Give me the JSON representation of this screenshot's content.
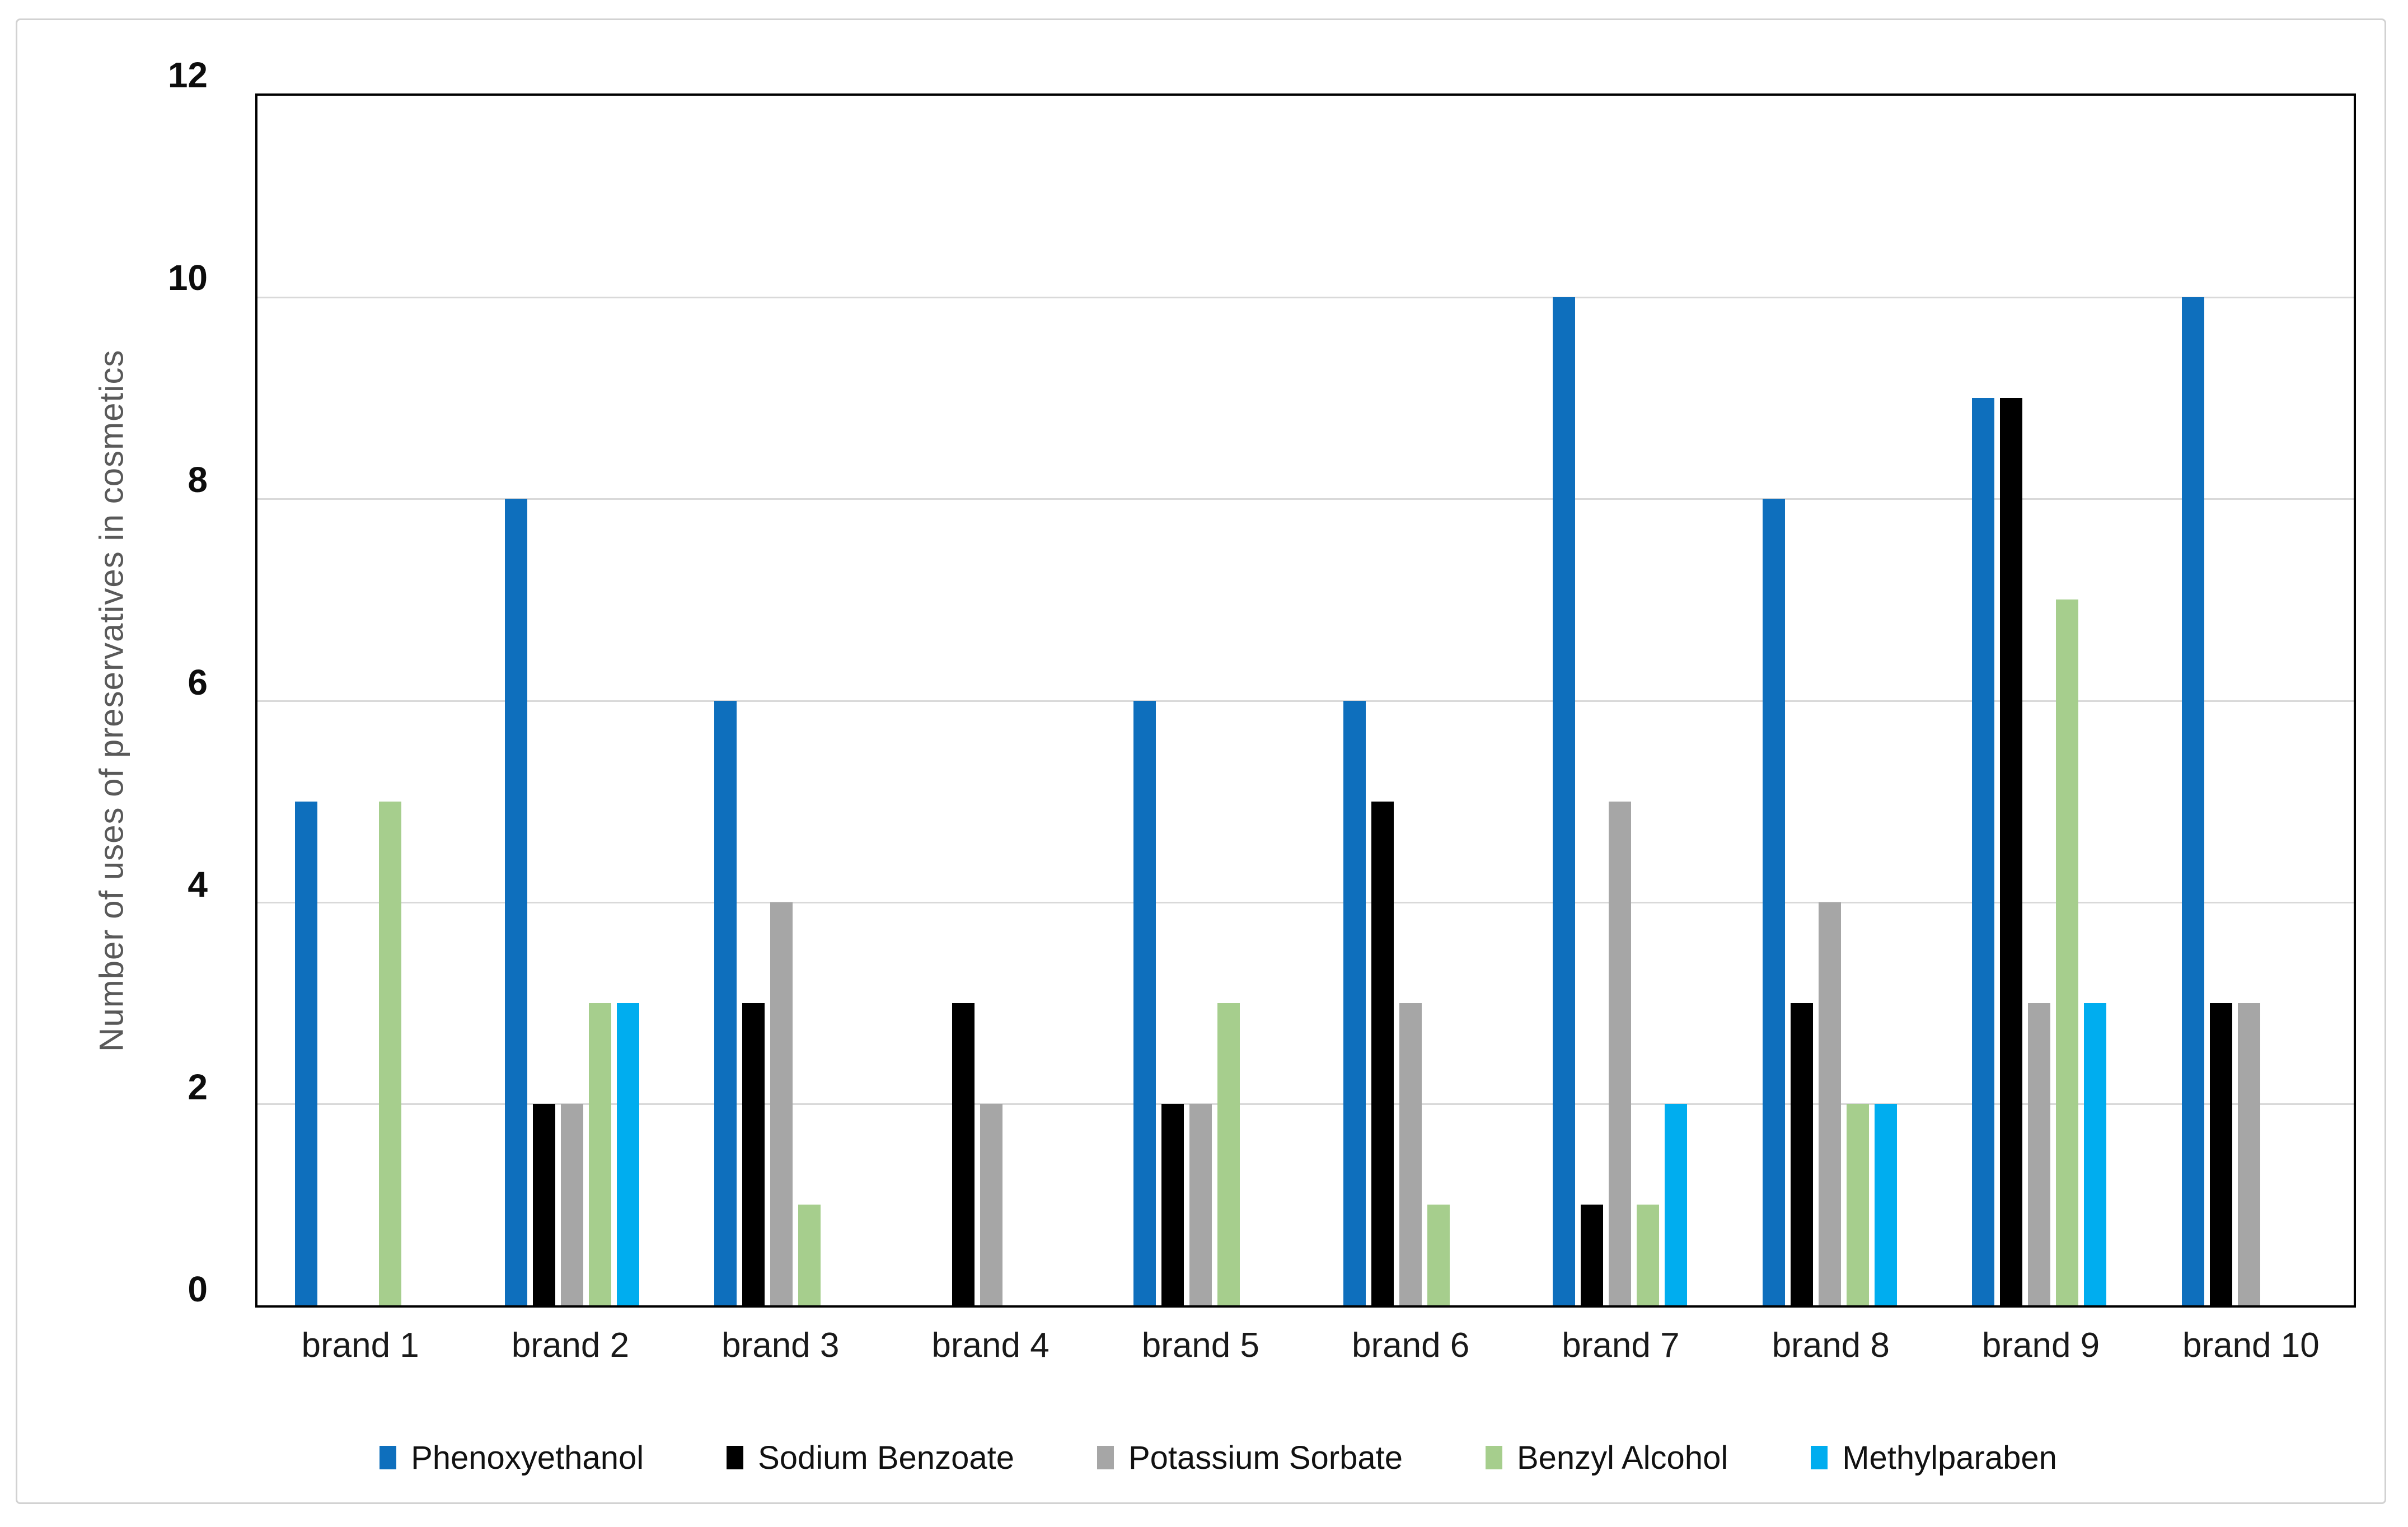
{
  "chart_data": {
    "type": "bar",
    "title": "",
    "categories": [
      "brand 1",
      "brand 2",
      "brand 3",
      "brand 4",
      "brand 5",
      "brand 6",
      "brand 7",
      "brand 8",
      "brand 9",
      "brand 10"
    ],
    "series": [
      {
        "name": "Phenoxyethanol",
        "color": "#0E6FBD",
        "values": [
          5,
          8,
          6,
          0,
          6,
          6,
          10,
          8,
          9,
          10
        ]
      },
      {
        "name": "Sodium Benzoate",
        "color": "#000000",
        "values": [
          0,
          2,
          3,
          3,
          2,
          5,
          1,
          3,
          9,
          3
        ]
      },
      {
        "name": "Potassium Sorbate",
        "color": "#A6A6A6",
        "values": [
          0,
          2,
          4,
          2,
          2,
          3,
          5,
          4,
          3,
          3
        ]
      },
      {
        "name": "Benzyl Alcohol",
        "color": "#A6CE8D",
        "values": [
          5,
          3,
          1,
          0,
          3,
          1,
          1,
          2,
          7,
          0
        ]
      },
      {
        "name": "Methylparaben",
        "color": "#00ADEF",
        "values": [
          0,
          3,
          0,
          0,
          0,
          0,
          2,
          2,
          3,
          0
        ]
      }
    ],
    "xlabel": "",
    "ylabel": "Number of uses of preservatives in cosmetics",
    "ylim": [
      0,
      12
    ],
    "yticks": [
      0,
      2,
      4,
      6,
      8,
      10,
      12
    ],
    "grid": true,
    "legend_position": "bottom",
    "colors": {
      "gridline": "#D9D9D9",
      "plot_border": "#000000",
      "frame_border": "#D2D2D2",
      "y_tick_label": "#0D0D0D",
      "x_category_label": "#1A1A1A",
      "axis_title": "#595959",
      "background": "#FFFFFF"
    }
  }
}
